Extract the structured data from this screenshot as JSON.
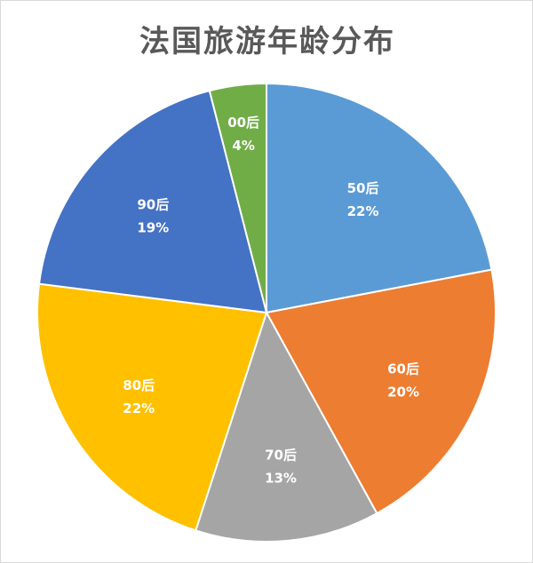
{
  "chart_data": {
    "type": "pie",
    "title": "法国旅游年龄分布",
    "slices": [
      {
        "label": "50后",
        "value": 22,
        "display": "22%",
        "color": "#5B9BD5"
      },
      {
        "label": "60后",
        "value": 20,
        "display": "20%",
        "color": "#ED7D31"
      },
      {
        "label": "70后",
        "value": 13,
        "display": "13%",
        "color": "#A5A5A5"
      },
      {
        "label": "80后",
        "value": 22,
        "display": "22%",
        "color": "#FFC000"
      },
      {
        "label": "90后",
        "value": 19,
        "display": "19%",
        "color": "#4472C4"
      },
      {
        "label": "00后",
        "value": 4,
        "display": "4%",
        "color": "#70AD47"
      }
    ],
    "legend": "none",
    "data_labels": "inside"
  }
}
